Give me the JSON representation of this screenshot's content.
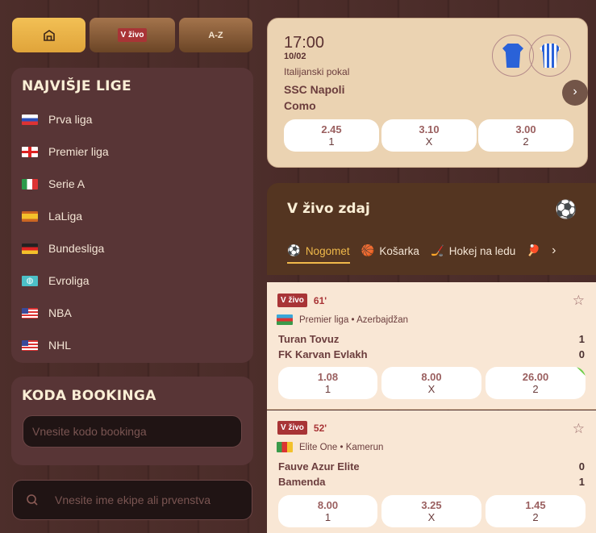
{
  "topnav": {
    "home_icon": "home-icon",
    "live_label": "V živo",
    "az_label": "A-Z"
  },
  "top_leagues": {
    "title": "NAJVIŠJE LIGE",
    "items": [
      {
        "label": "Prva liga",
        "flag": "slovenia"
      },
      {
        "label": "Premier liga",
        "flag": "england"
      },
      {
        "label": "Serie A",
        "flag": "italy"
      },
      {
        "label": "LaLiga",
        "flag": "spain"
      },
      {
        "label": "Bundesliga",
        "flag": "germany"
      },
      {
        "label": "Evroliga",
        "flag": "globe"
      },
      {
        "label": "NBA",
        "flag": "usa"
      },
      {
        "label": "NHL",
        "flag": "usa"
      }
    ]
  },
  "booking": {
    "title": "KODA BOOKINGA",
    "placeholder": "Vnesite kodo bookinga"
  },
  "search": {
    "placeholder": "Vnesite ime ekipe ali prvenstva"
  },
  "featured": {
    "time": "17:00",
    "date": "10/02",
    "competition": "Italijanski pokal",
    "home": "SSC Napoli",
    "away": "Como",
    "odds": [
      {
        "value": "2.45",
        "label": "1"
      },
      {
        "value": "3.10",
        "label": "X"
      },
      {
        "value": "3.00",
        "label": "2"
      }
    ]
  },
  "live_now": {
    "title": "V živo zdaj",
    "tabs": [
      {
        "label": "Nogomet",
        "icon": "soccer-ball-icon",
        "active": true
      },
      {
        "label": "Košarka",
        "icon": "basketball-icon"
      },
      {
        "label": "Hokej na ledu",
        "icon": "hockey-stick-icon"
      },
      {
        "label": "",
        "icon": "table-tennis-icon"
      }
    ]
  },
  "matches": [
    {
      "badge": "V živo",
      "minute": "61'",
      "league": "Premier liga • Azerbajdžan",
      "flag": "azerbaijan",
      "home": "Turan Tovuz",
      "away": "FK Karvan Evlakh",
      "home_score": "1",
      "away_score": "0",
      "odds": [
        {
          "value": "1.08",
          "label": "1"
        },
        {
          "value": "8.00",
          "label": "X"
        },
        {
          "value": "26.00",
          "label": "2"
        }
      ]
    },
    {
      "badge": "V živo",
      "minute": "52'",
      "league": "Elite One • Kamerun",
      "flag": "cameroon",
      "home": "Fauve Azur Elite",
      "away": "Bamenda",
      "home_score": "0",
      "away_score": "1",
      "odds": [
        {
          "value": "8.00",
          "label": "1"
        },
        {
          "value": "3.25",
          "label": "X"
        },
        {
          "value": "1.45",
          "label": "2"
        }
      ]
    }
  ],
  "colors": {
    "accent": "#f2c055",
    "live_badge": "#a83436",
    "panel": "#583536",
    "card": "#ebd3b2"
  }
}
